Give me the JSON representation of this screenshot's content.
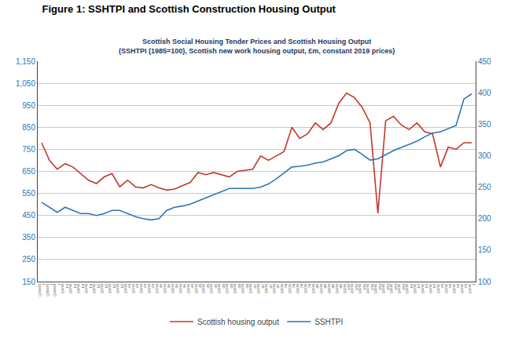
{
  "chart_data": {
    "type": "line",
    "title": "Figure 1: SSHTPI and Scottish Construction Housing Output",
    "subtitle": [
      "Scottish Social Housing Tender Prices and Scottish Housing Output",
      "(SSHTPI (1985=100), Scottish new work housing output, £m, constant 2019 prices)"
    ],
    "categories": [
      "Q2010/1\n1",
      "Q3010/1\n1",
      "Q4010/1\n1",
      "Q1201\n1/1",
      "Q2201\n1/1",
      "Q3201\n1/1",
      "Q4201\n1/1",
      "Q1201\n1/2",
      "Q2201\n1/2",
      "Q3201\n1/2",
      "Q4201\n1/2",
      "Q1201\n2/3",
      "Q2201\n2/3",
      "Q3201\n2/3",
      "Q4201\n2/3",
      "Q1201\n3/4",
      "Q2201\n3/4",
      "Q3201\n3/4",
      "Q4201\n3/4",
      "Q1201\n4/5",
      "Q2201\n4/5",
      "Q3201\n4/5",
      "Q4201\n4/5",
      "Q1201\n5/6",
      "Q2201\n5/6",
      "Q3201\n5/6",
      "Q4201\n5/6",
      "Q1201\n6/7",
      "Q2201\n6/7",
      "Q3201\n6/7",
      "Q4201\n6/7",
      "Q1201\n7/8",
      "Q2201\n7/8",
      "Q3201\n7/8",
      "Q4201\n7/8",
      "Q1201\n8/9",
      "Q2201\n8/9",
      "Q3201\n8/9",
      "Q4201\n8/9",
      "Q1201\n9/20",
      "Q2201\n9/20",
      "Q3201\n9/20",
      "Q4201\n9/20",
      "Q1202\n0/21",
      "Q2202\n0/21",
      "Q3202\n0/21",
      "Q4202\n0/21",
      "Q1202\n1/2",
      "Q2202\n1/2",
      "Q3202\n1/2",
      "Q4202\n1/2",
      "Q1202\n2/3",
      "Q2202\n2/3",
      "Q3202\n2/3",
      "Q4202\n2/3",
      "Q1202\n3"
    ],
    "series": [
      {
        "name": "Scottish housing output",
        "color": "#c0392b",
        "values": [
          780,
          700,
          660,
          685,
          670,
          640,
          610,
          595,
          625,
          640,
          580,
          610,
          580,
          575,
          590,
          575,
          565,
          570,
          585,
          600,
          645,
          635,
          645,
          635,
          625,
          650,
          655,
          660,
          720,
          700,
          720,
          740,
          850,
          800,
          820,
          870,
          840,
          870,
          960,
          1005,
          985,
          940,
          870,
          460,
          880,
          900,
          860,
          840,
          870,
          830,
          820,
          670,
          760,
          750,
          780,
          780
        ]
      },
      {
        "name": "SSHTPI",
        "color": "#2e75b6",
        "axis": "y2",
        "values": [
          226,
          218,
          210,
          218,
          213,
          208,
          208,
          205,
          208,
          213,
          213,
          208,
          203,
          200,
          198,
          200,
          213,
          218,
          220,
          223,
          228,
          233,
          238,
          243,
          248,
          248,
          248,
          248,
          250,
          255,
          263,
          272,
          282,
          283,
          285,
          288,
          290,
          295,
          300,
          308,
          310,
          302,
          293,
          295,
          302,
          308,
          313,
          318,
          323,
          330,
          336,
          338,
          343,
          348,
          390,
          398
        ]
      }
    ],
    "ylim": [
      150,
      1150
    ],
    "yticks": [
      150,
      250,
      350,
      450,
      550,
      650,
      750,
      850,
      950,
      {
        "value": 1050,
        "label": "1,050"
      },
      {
        "value": 1150,
        "label": "1,150"
      }
    ],
    "y2lim": [
      100,
      450
    ],
    "y2ticks": [
      100,
      150,
      200,
      250,
      300,
      350,
      400,
      450
    ],
    "grid": true,
    "legend": "bottom"
  }
}
